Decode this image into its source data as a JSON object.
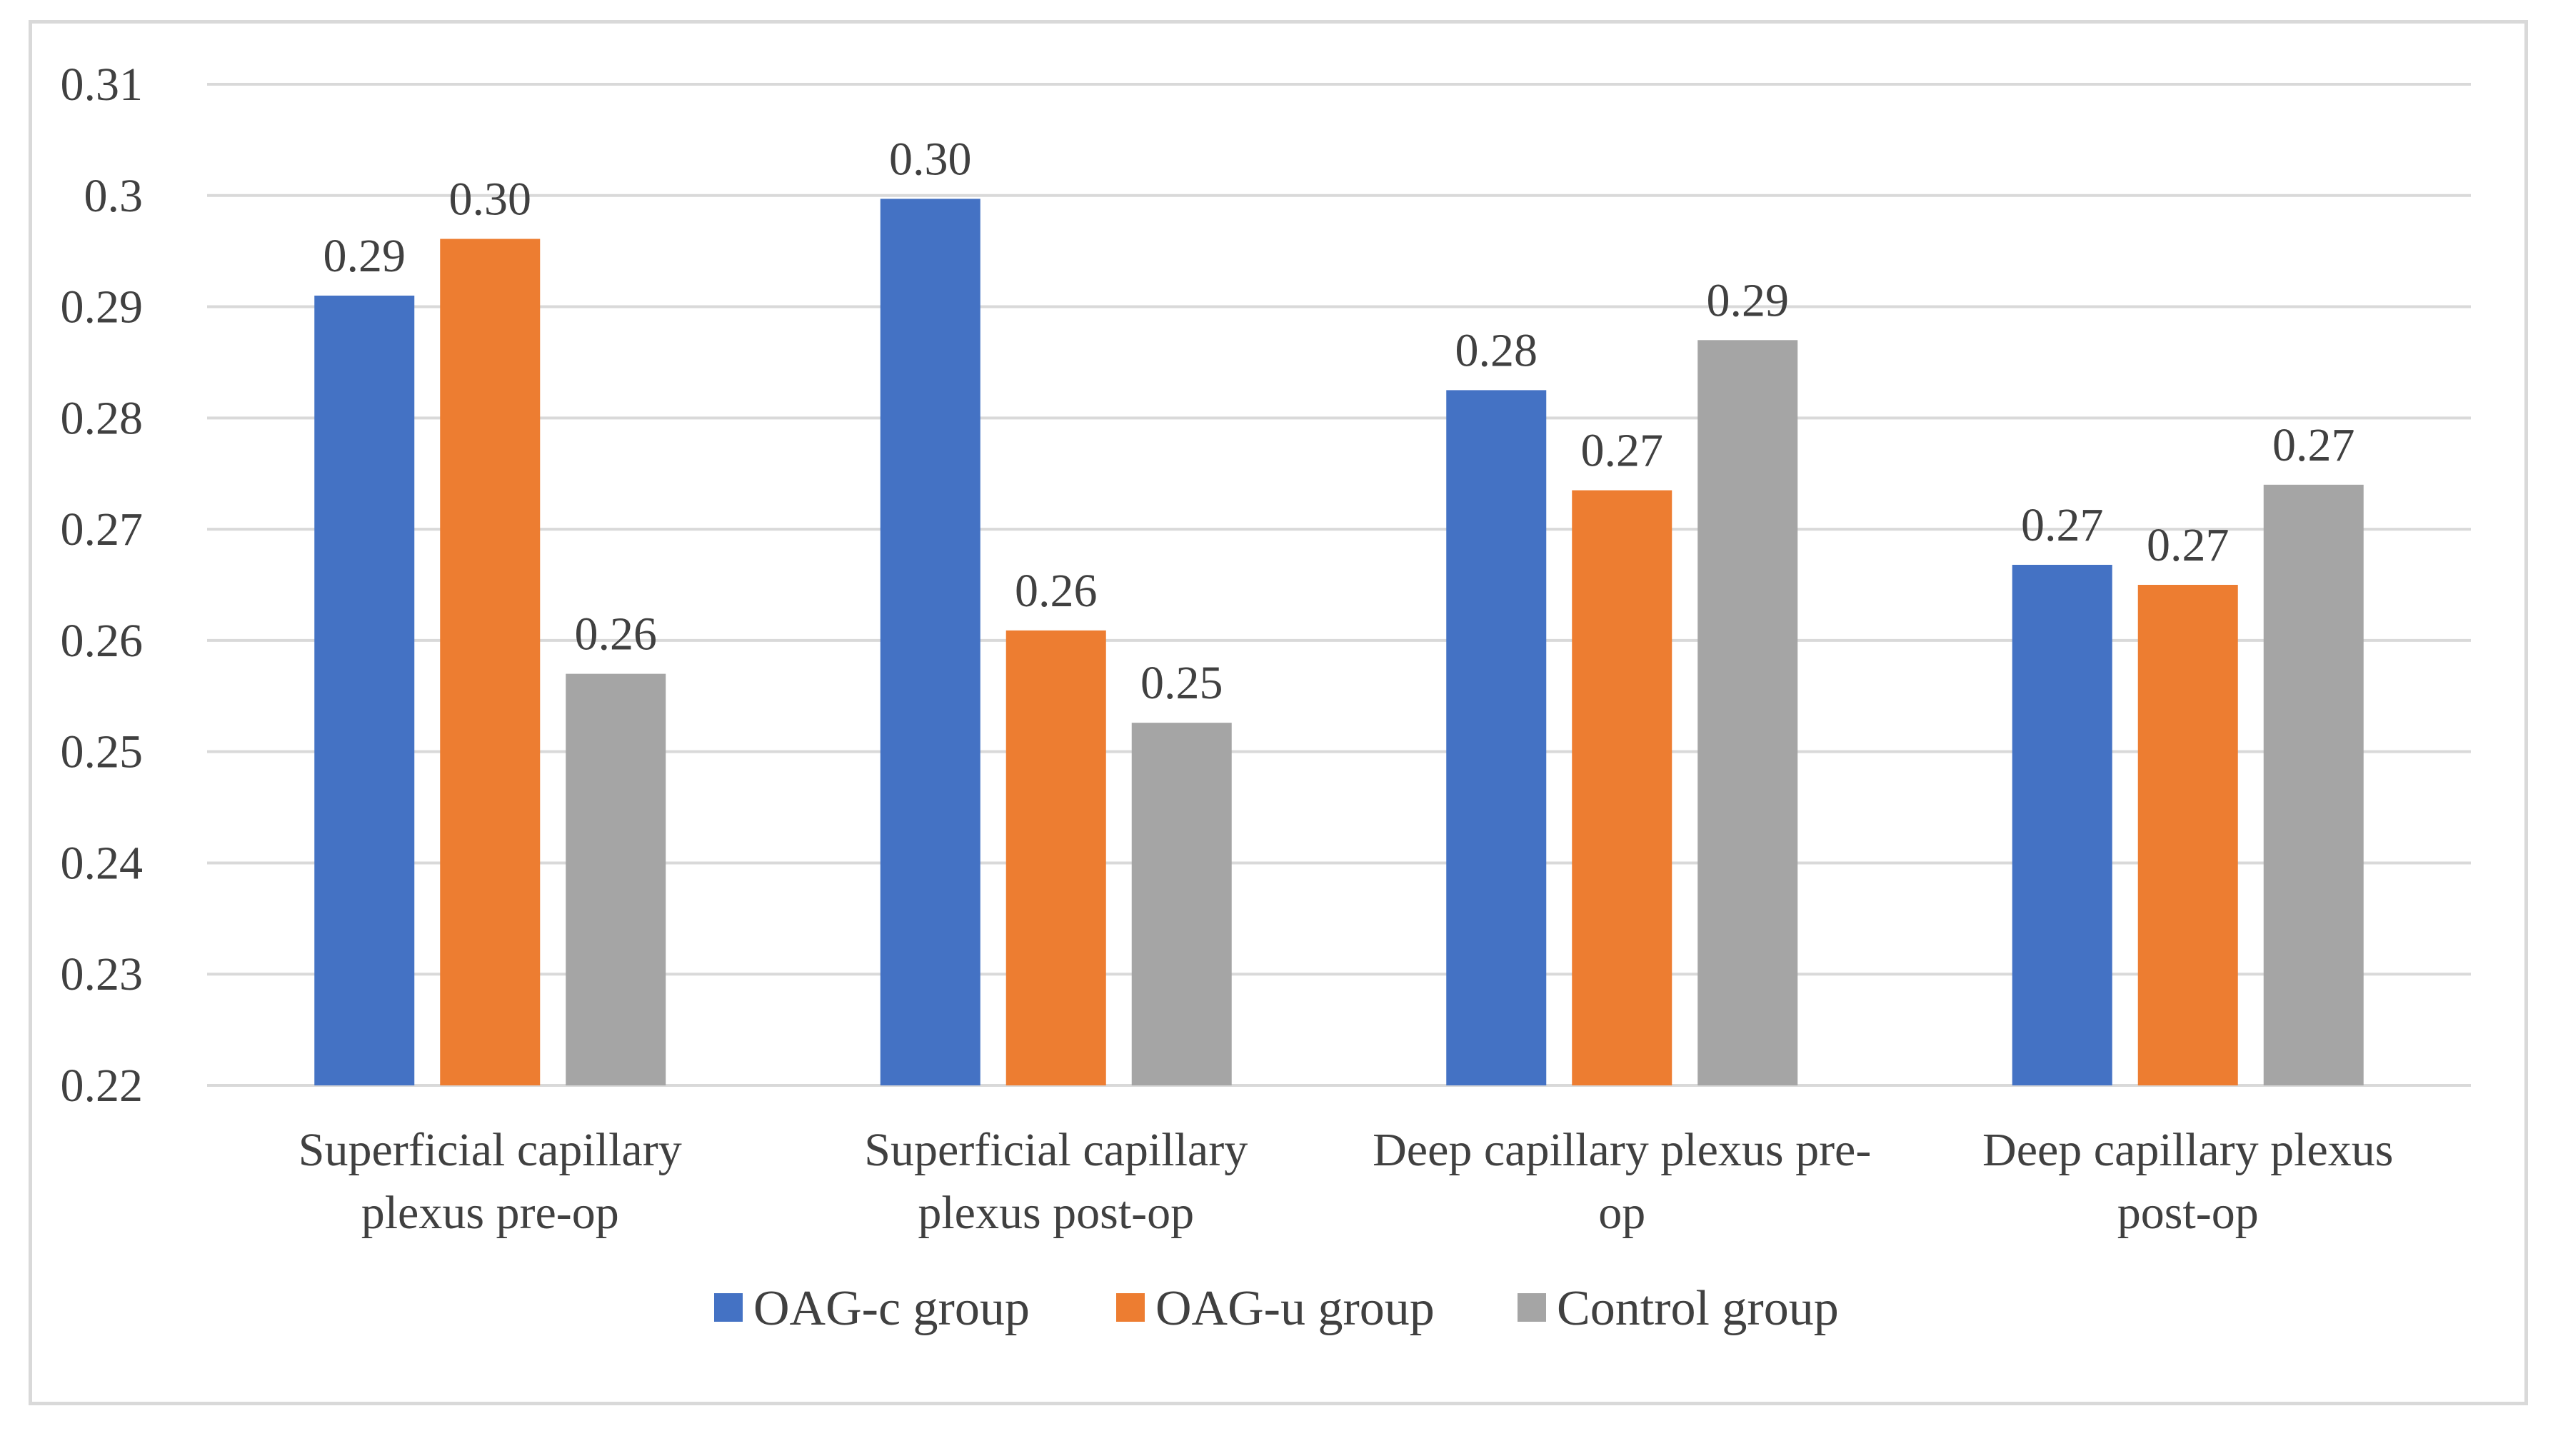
{
  "chart_data": {
    "type": "bar",
    "title": "",
    "xlabel": "",
    "ylabel": "",
    "ylim": [
      0.22,
      0.31
    ],
    "yticks": [
      "0.22",
      "0.23",
      "0.24",
      "0.25",
      "0.26",
      "0.27",
      "0.28",
      "0.29",
      "0.3",
      "0.31"
    ],
    "grid": true,
    "legend_position": "bottom",
    "categories": [
      [
        "Superficial capillary",
        "plexus pre-op"
      ],
      [
        "Superficial capillary",
        "plexus post-op"
      ],
      [
        "Deep capillary plexus pre-",
        "op"
      ],
      [
        "Deep capillary plexus",
        "post-op"
      ]
    ],
    "series": [
      {
        "name": "OAG-c group",
        "color": "#4472c4",
        "values": [
          0.291,
          0.2997,
          0.2825,
          0.2668
        ],
        "labels": [
          "0.29",
          "0.30",
          "0.28",
          "0.27"
        ]
      },
      {
        "name": "OAG-u group",
        "color": "#ed7d31",
        "values": [
          0.2961,
          0.2609,
          0.2735,
          0.265
        ],
        "labels": [
          "0.30",
          "0.26",
          "0.27",
          "0.27"
        ]
      },
      {
        "name": "Control group",
        "color": "#a5a5a5",
        "values": [
          0.257,
          0.2526,
          0.287,
          0.274
        ],
        "labels": [
          "0.26",
          "0.25",
          "0.29",
          "0.27"
        ]
      }
    ]
  }
}
